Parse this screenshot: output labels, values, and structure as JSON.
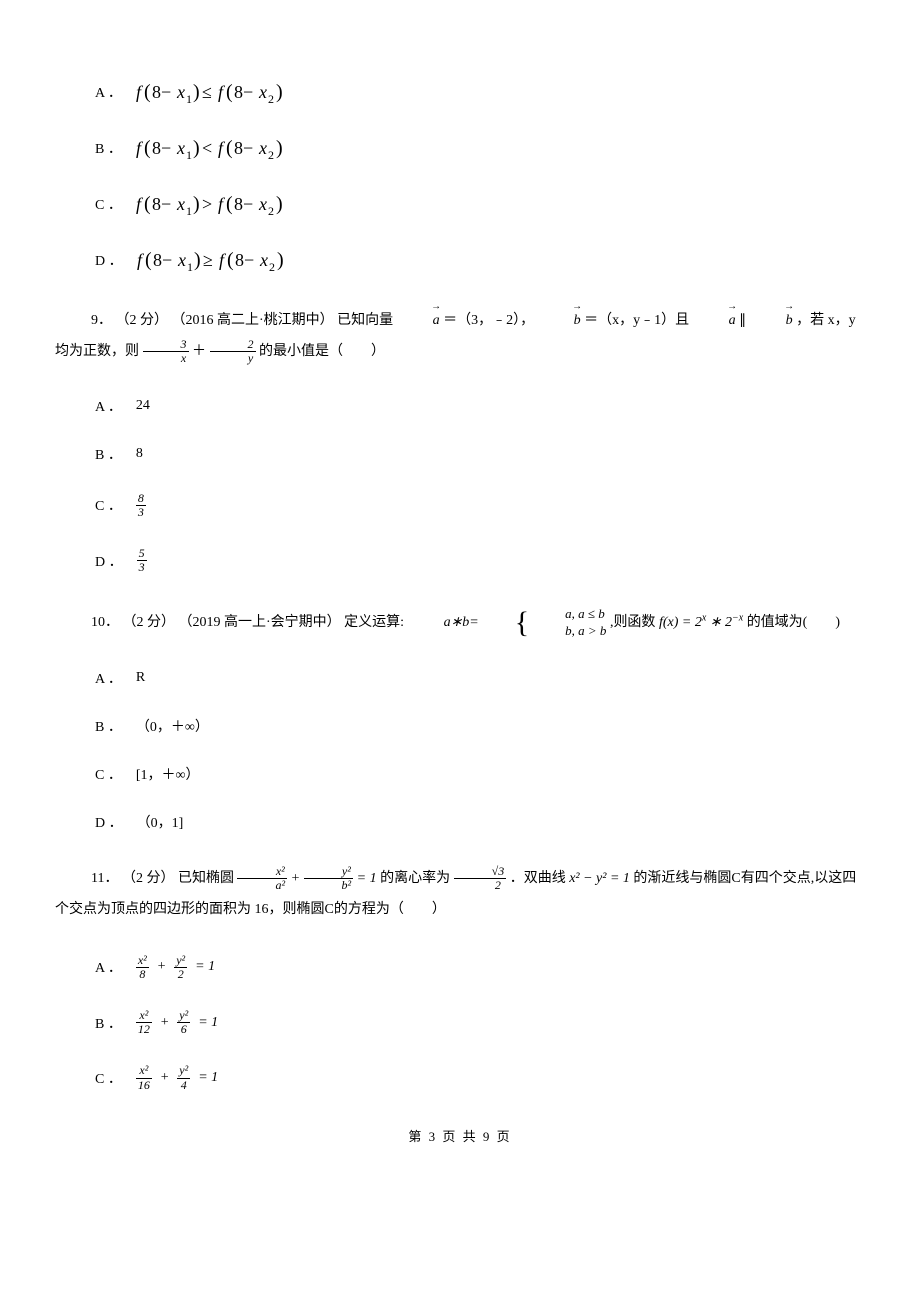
{
  "q_prev": {
    "options": {
      "A": "f(8−x₁) ≤ f(8−x₂)",
      "B": "f(8−x₁) < f(8−x₂)",
      "C": "f(8−x₁) > f(8−x₂)",
      "D": "f(8−x₁) ≥ f(8−x₂)"
    }
  },
  "q9": {
    "number": "9．",
    "points": "（2 分）",
    "source": "（2016 高二上·桃江期中）",
    "stem_1": "已知向量 ",
    "vec_a": "a",
    "eq_a": " ＝（3，﹣2），",
    "vec_b": "b",
    "eq_b": " ＝（x，y﹣1）且 ",
    "parallel": " ∥ ",
    "stem_2": " ，若 x，y 均为正数，则 ",
    "plus": " ＋ ",
    "stem_3": " 的最小值是（　　）",
    "frac1_num": "3",
    "frac1_den": "x",
    "frac2_num": "2",
    "frac2_den": "y",
    "options": {
      "A": "24",
      "B": "8",
      "C_num": "8",
      "C_den": "3",
      "D_num": "5",
      "D_den": "3"
    }
  },
  "q10": {
    "number": "10．",
    "points": "（2 分）",
    "source": "（2019 高一上·会宁期中）",
    "stem_1": "定义运算: ",
    "op_lhs": "a∗b=",
    "case1": "a, a ≤ b",
    "case2": "b, a > b",
    "stem_2": " ,则函数 ",
    "func": "f(x) = 2",
    "exp1": "x",
    "star": " ∗ 2",
    "exp2": "−x",
    "stem_3": " 的值域为(　　)",
    "options": {
      "A": "R",
      "B": "（0，＋∞）",
      "C": "[1，＋∞）",
      "D": "（0，1]"
    }
  },
  "q11": {
    "number": "11．",
    "points": "（2 分）",
    "stem_1": " 已知椭圆",
    "ellipse_num1": "x²",
    "ellipse_den1": "a²",
    "plus": "+",
    "ellipse_num2": "y²",
    "ellipse_den2": "b²",
    "eq1": "= 1",
    "stem_2": "的离心率为",
    "ecc_num": "√3",
    "ecc_den": "2",
    "stem_3": "．双曲线",
    "hyperbola": "x² − y² = 1",
    "stem_4": "的渐近线与椭圆C有四个交点,以这四个交点为顶点的四边形的面积为 16，则椭圆C的方程为（　　）",
    "options": {
      "A_num1": "x²",
      "A_den1": "8",
      "A_num2": "y²",
      "A_den2": "2",
      "B_num1": "x²",
      "B_den1": "12",
      "B_num2": "y²",
      "B_den2": "6",
      "C_num1": "x²",
      "C_den1": "16",
      "C_num2": "y²",
      "C_den2": "4",
      "eq": "= 1"
    }
  },
  "footer": "第 3 页 共 9 页"
}
